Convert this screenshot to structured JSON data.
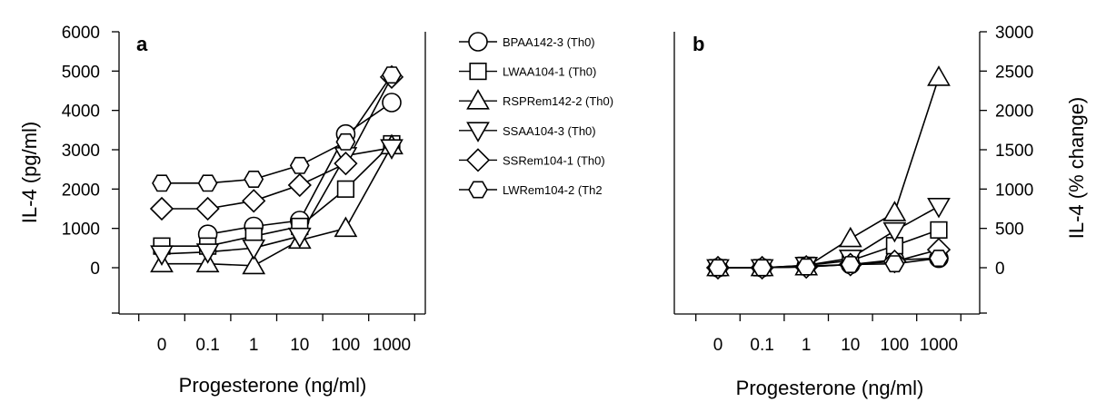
{
  "chart_data": [
    {
      "type": "line",
      "panel_label": "a",
      "title": "",
      "xlabel": "Progesterone (ng/ml)",
      "ylabel": "IL-4 (pg/ml)",
      "categories": [
        "0",
        "0.1",
        "1",
        "10",
        "100",
        "1000"
      ],
      "yticks": [
        "0",
        "1000",
        "2000",
        "3000",
        "4000",
        "5000",
        "6000"
      ],
      "ylim": [
        -1000,
        6000
      ],
      "series": [
        {
          "name": "BPAA142-3 (Th0)",
          "marker": "circle",
          "values": [
            null,
            850,
            1050,
            1200,
            3400,
            4200
          ]
        },
        {
          "name": "LWAA104-1 (Th0)",
          "marker": "square",
          "values": [
            550,
            550,
            800,
            1050,
            2000,
            3150
          ]
        },
        {
          "name": "RSPRem142-2 (Th0)",
          "marker": "triangle-up",
          "values": [
            100,
            100,
            50,
            700,
            1000,
            3100
          ]
        },
        {
          "name": "SSAA104-3 (Th0)",
          "marker": "triangle-down",
          "values": [
            350,
            400,
            500,
            800,
            2850,
            3050
          ]
        },
        {
          "name": "SSRem104-1 (Th0)",
          "marker": "diamond",
          "values": [
            1500,
            1500,
            1700,
            2100,
            2650,
            4850
          ]
        },
        {
          "name": "LWRem104-2 (Th2",
          "marker": "hexagon",
          "values": [
            2150,
            2150,
            2250,
            2600,
            3200,
            4900
          ]
        }
      ]
    },
    {
      "type": "line",
      "panel_label": "b",
      "title": "",
      "xlabel": "Progesterone (ng/ml)",
      "ylabel": "IL-4 (% change)",
      "categories": [
        "0",
        "0.1",
        "1",
        "10",
        "100",
        "1000"
      ],
      "yticks": [
        "0",
        "500",
        "1000",
        "1500",
        "2000",
        "2500",
        "3000"
      ],
      "ylim": [
        -500,
        3000
      ],
      "series": [
        {
          "name": "BPAA142-3 (Th0)",
          "marker": "circle",
          "values": [
            0,
            0,
            20,
            40,
            100,
            120
          ]
        },
        {
          "name": "LWAA104-1 (Th0)",
          "marker": "square",
          "values": [
            0,
            0,
            30,
            90,
            280,
            480
          ]
        },
        {
          "name": "RSPRem142-2 (Th0)",
          "marker": "triangle-up",
          "values": [
            0,
            0,
            10,
            370,
            700,
            2420
          ]
        },
        {
          "name": "SSAA104-3 (Th0)",
          "marker": "triangle-down",
          "values": [
            0,
            0,
            30,
            120,
            470,
            780
          ]
        },
        {
          "name": "SSRem104-1 (Th0)",
          "marker": "diamond",
          "values": [
            0,
            0,
            10,
            40,
            80,
            230
          ]
        },
        {
          "name": "LWRem104-2 (Th2",
          "marker": "hexagon",
          "values": [
            0,
            0,
            10,
            40,
            50,
            120
          ]
        }
      ]
    }
  ]
}
